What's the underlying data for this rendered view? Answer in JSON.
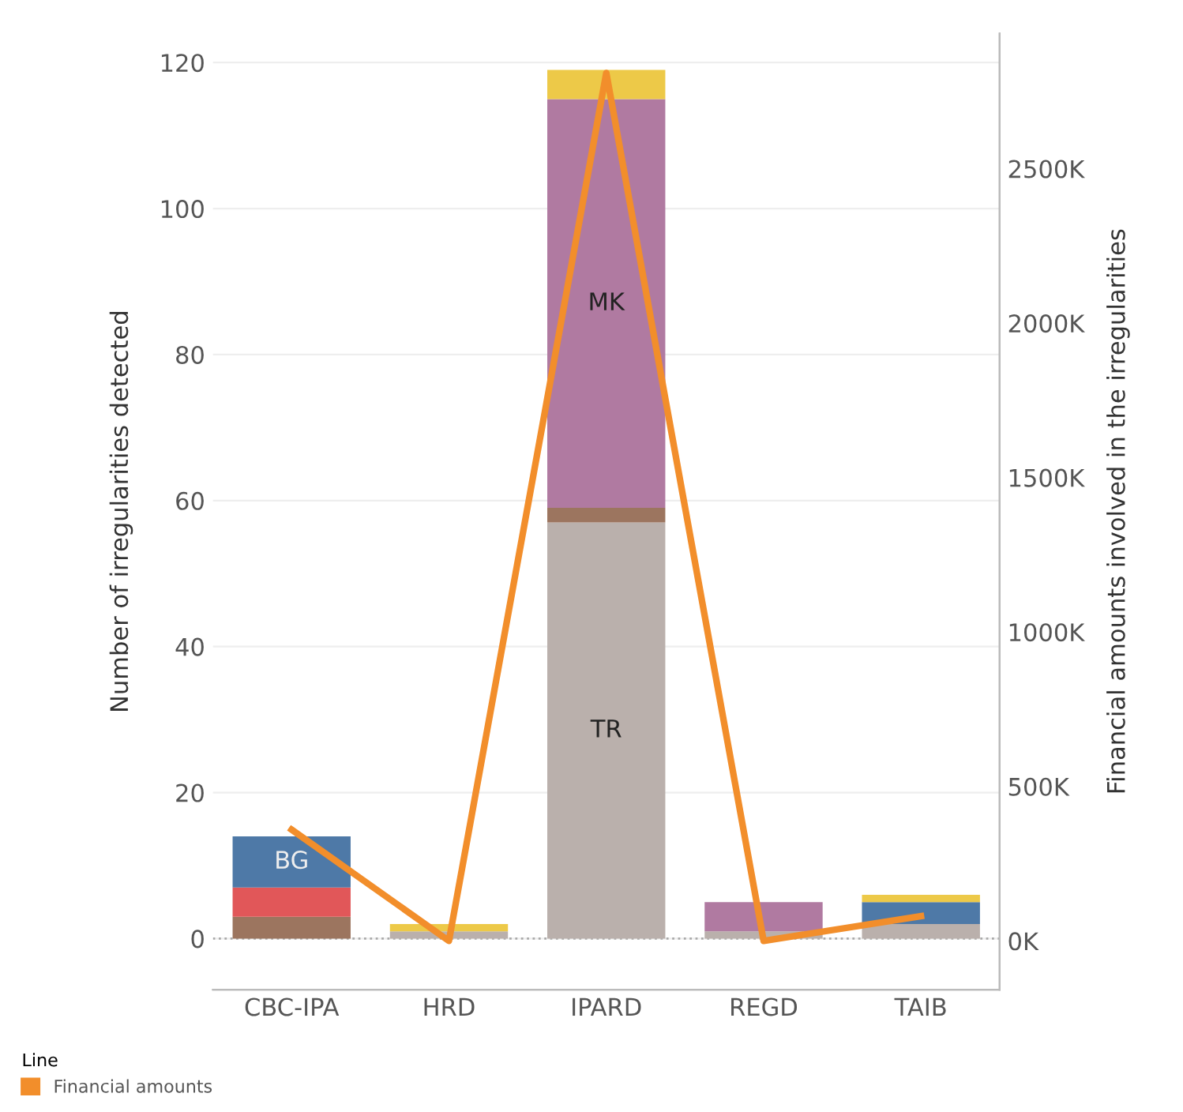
{
  "chart_data": {
    "type": "bar",
    "stacked": true,
    "categories": [
      "CBC-IPA",
      "HRD",
      "IPARD",
      "REGD",
      "TAIB"
    ],
    "ylabel": "Number of irregularities detected",
    "y2label": "Financial amounts involved in the irregularities",
    "ylim": [
      -7,
      124
    ],
    "yticks": [
      0,
      20,
      40,
      60,
      80,
      100,
      120
    ],
    "y2lim": [
      -158000,
      2938000
    ],
    "y2ticks": [
      {
        "value": 0,
        "label": "0K"
      },
      {
        "value": 500000,
        "label": "500K"
      },
      {
        "value": 1000000,
        "label": "1000K"
      },
      {
        "value": 1500000,
        "label": "1500K"
      },
      {
        "value": 2000000,
        "label": "2000K"
      },
      {
        "value": 2500000,
        "label": "2500K"
      }
    ],
    "grid": "y",
    "legend": "bottom left",
    "legend_title": "Line",
    "ref_lines": [
      {
        "axis": "y",
        "value": 0,
        "color": "#aaaaaa",
        "line_style": "dotted"
      }
    ],
    "series": [
      {
        "name": "TR",
        "color": "#bab0ac",
        "values": [
          0,
          1,
          57,
          1,
          2
        ]
      },
      {
        "color": "#9c755f",
        "values": [
          3,
          0,
          2,
          0,
          0
        ]
      },
      {
        "color": "#e15759",
        "values": [
          4,
          0,
          0,
          0,
          0
        ]
      },
      {
        "name": "BG",
        "color": "#4e79a7",
        "values": [
          7,
          0,
          0,
          0,
          3
        ]
      },
      {
        "name": "MK",
        "color": "#b07aa1",
        "values": [
          0,
          0,
          56,
          4,
          0
        ]
      },
      {
        "color": "#edc948",
        "values": [
          0,
          1,
          4,
          0,
          1
        ]
      },
      {
        "type": "line",
        "axis": "y2",
        "name": "Financial amounts",
        "color": "#f28e2b",
        "values": [
          360000,
          0,
          2810000,
          0,
          80000
        ]
      }
    ]
  }
}
